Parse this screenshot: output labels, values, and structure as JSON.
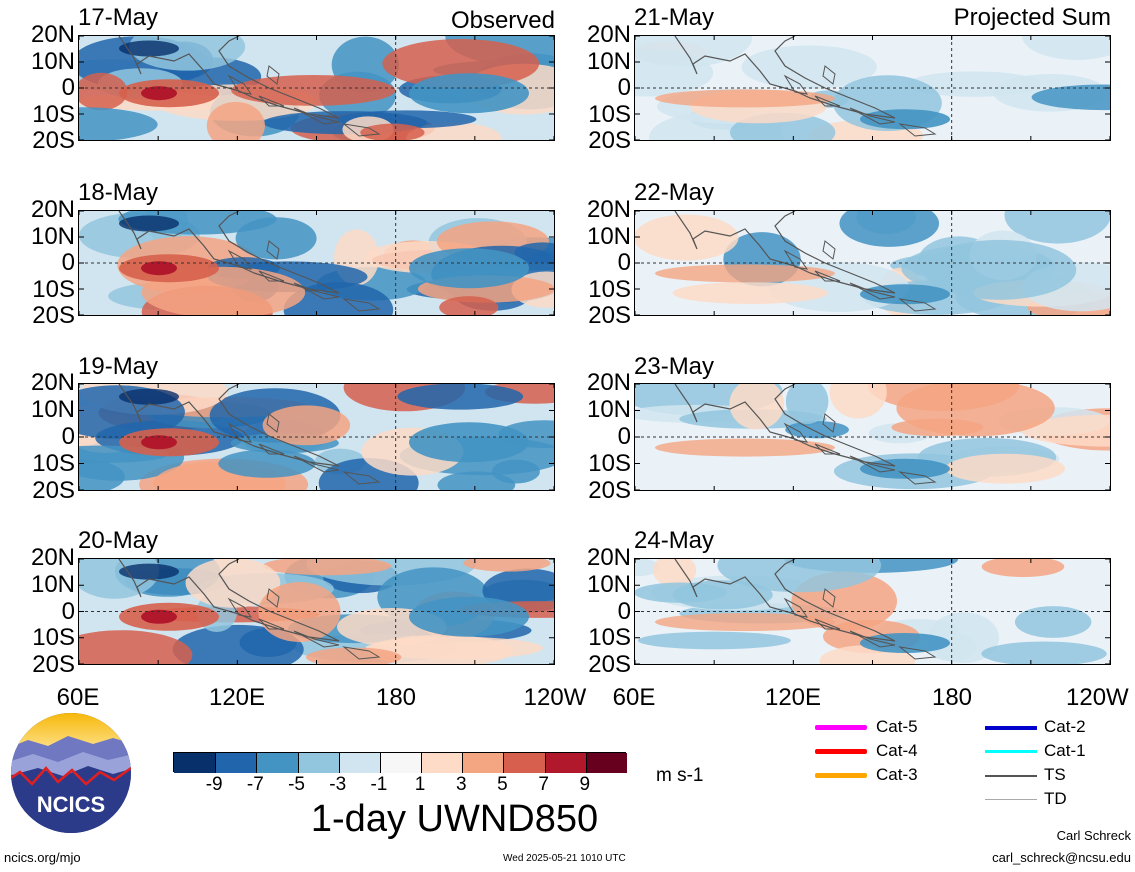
{
  "panels_left": [
    {
      "date": "17-May",
      "tag": "Observed"
    },
    {
      "date": "18-May",
      "tag": ""
    },
    {
      "date": "19-May",
      "tag": ""
    },
    {
      "date": "20-May",
      "tag": ""
    }
  ],
  "panels_right": [
    {
      "date": "21-May",
      "tag": "Projected Sum"
    },
    {
      "date": "22-May",
      "tag": ""
    },
    {
      "date": "23-May",
      "tag": ""
    },
    {
      "date": "24-May",
      "tag": ""
    }
  ],
  "lat_labels": [
    "20N",
    "10N",
    "0",
    "10S",
    "20S"
  ],
  "lon_labels_left": [
    "60E",
    "120E",
    "180",
    "120W"
  ],
  "lon_labels_right": [
    "60E",
    "120E",
    "180",
    "120W"
  ],
  "colorbar": {
    "labels": [
      "-9",
      "-7",
      "-5",
      "-3",
      "-1",
      "1",
      "3",
      "5",
      "7",
      "9"
    ],
    "colors": [
      "#08306b",
      "#2166ac",
      "#4393c3",
      "#92c5de",
      "#d1e5f0",
      "#f7f7f7",
      "#fddbc7",
      "#f4a582",
      "#d6604d",
      "#b2182b",
      "#67001f"
    ],
    "units": "m s-1",
    "title": "1-day UWND850"
  },
  "legend": [
    {
      "label": "Cat-5",
      "color": "#ff00ff"
    },
    {
      "label": "Cat-4",
      "color": "#ff0000"
    },
    {
      "label": "Cat-3",
      "color": "#ffa500"
    },
    {
      "label": "Cat-2",
      "color": "#0000cc"
    },
    {
      "label": "Cat-1",
      "color": "#00ffff"
    },
    {
      "label": "TS",
      "color": "#555555"
    },
    {
      "label": "TD",
      "color": "#aaaaaa"
    }
  ],
  "logo": {
    "text": "NCICS"
  },
  "footer": {
    "url": "ncics.org/mjo",
    "timestamp": "Wed 2025-05-21 1010 UTC",
    "author": "Carl Schreck",
    "email": "carl_schreck@ncsu.edu"
  }
}
